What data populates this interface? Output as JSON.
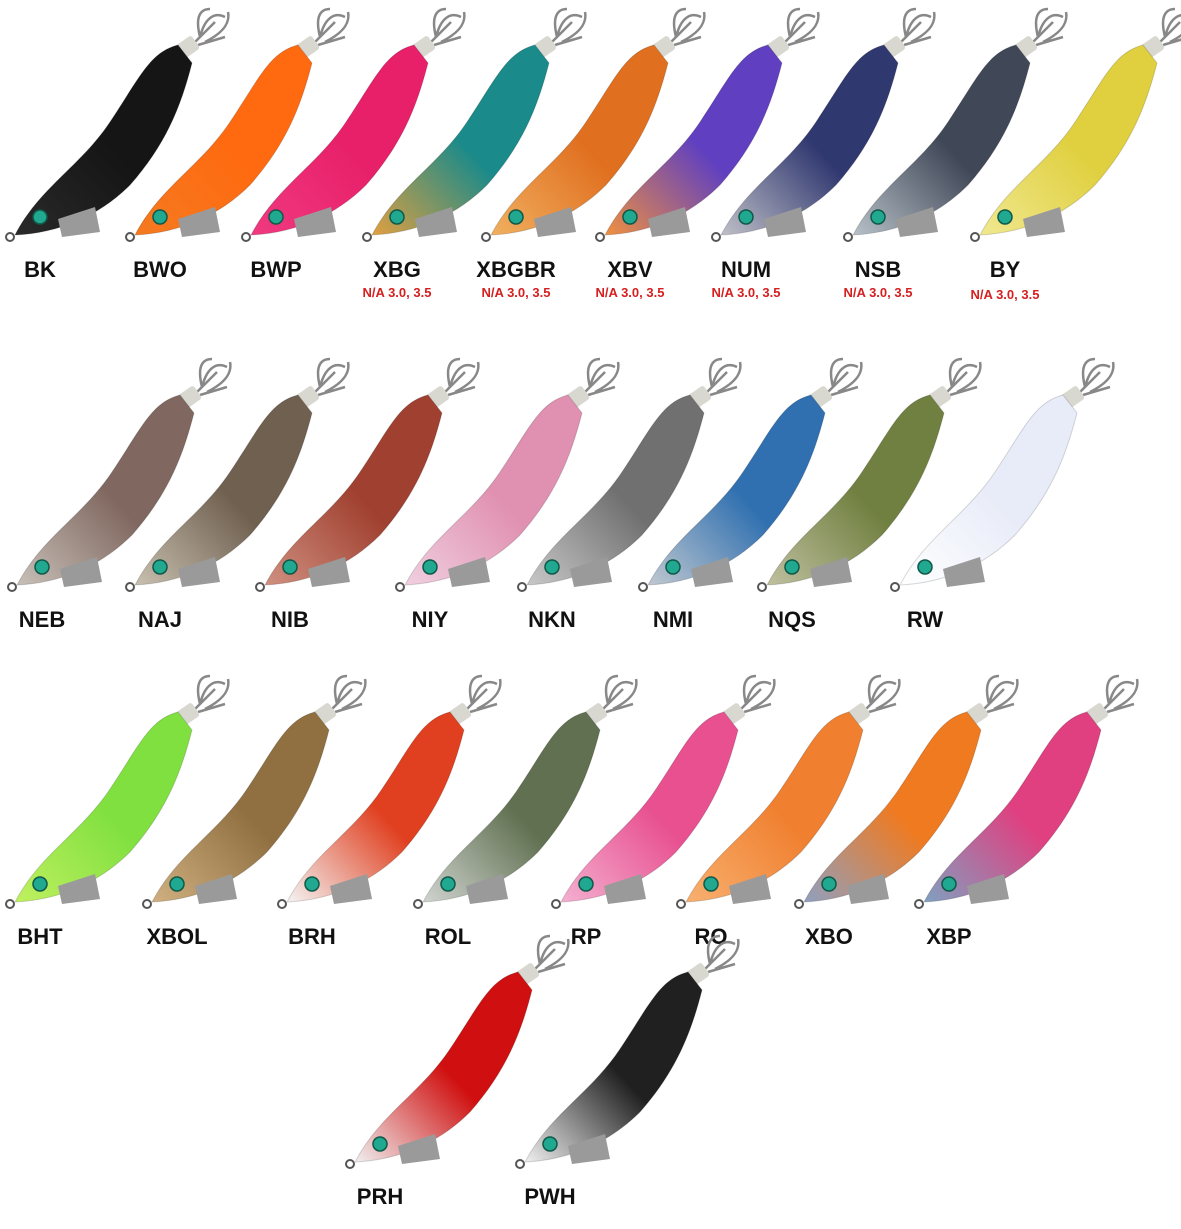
{
  "rows": [
    {
      "items": [
        {
          "code": "BK",
          "colors": [
            "#151515",
            "#2a2a2a"
          ]
        },
        {
          "code": "BWO",
          "colors": [
            "#ff6a10",
            "#f57a20"
          ]
        },
        {
          "code": "BWP",
          "colors": [
            "#e8206a",
            "#f03a80"
          ]
        },
        {
          "code": "XBG",
          "colors": [
            "#1a8a8a",
            "#e0a040"
          ],
          "note": "N/A 3.0, 3.5"
        },
        {
          "code": "XBGBR",
          "colors": [
            "#e07020",
            "#f0b060"
          ],
          "note": "N/A 3.0, 3.5"
        },
        {
          "code": "XBV",
          "colors": [
            "#6040c0",
            "#f09040"
          ],
          "note": "N/A 3.0, 3.5"
        },
        {
          "code": "NUM",
          "colors": [
            "#303870",
            "#c0c0c8"
          ],
          "note": "N/A 3.0, 3.5"
        },
        {
          "code": "NSB",
          "colors": [
            "#404858",
            "#b8c0c8"
          ],
          "note": "N/A 3.0, 3.5"
        },
        {
          "code": "BY",
          "colors": [
            "#e0d040",
            "#f0e890"
          ],
          "note": "N/A 3.0, 3.5"
        }
      ]
    },
    {
      "items": [
        {
          "code": "NEB",
          "colors": [
            "#806860",
            "#c8c0b8"
          ]
        },
        {
          "code": "NAJ",
          "colors": [
            "#706050",
            "#c8c0b0"
          ]
        },
        {
          "code": "NIB",
          "colors": [
            "#a04030",
            "#d09080"
          ]
        },
        {
          "code": "NIY",
          "colors": [
            "#e090b0",
            "#f0d0e0"
          ]
        },
        {
          "code": "NKN",
          "colors": [
            "#707070",
            "#c8c8c8"
          ]
        },
        {
          "code": "NMI",
          "colors": [
            "#3070b0",
            "#c0c8d0"
          ]
        },
        {
          "code": "NQS",
          "colors": [
            "#708040",
            "#c0c0a0"
          ]
        },
        {
          "code": "RW",
          "colors": [
            "#e8ecf8",
            "#ffffff"
          ]
        }
      ]
    },
    {
      "items": [
        {
          "code": "BHT",
          "colors": [
            "#80e040",
            "#c0f060"
          ]
        },
        {
          "code": "XBOL",
          "colors": [
            "#907040",
            "#d0b080"
          ]
        },
        {
          "code": "BRH",
          "colors": [
            "#e04020",
            "#f4f4f4"
          ]
        },
        {
          "code": "ROL",
          "colors": [
            "#607050",
            "#d0d4d0"
          ]
        },
        {
          "code": "RP",
          "colors": [
            "#e85090",
            "#f4b0d0"
          ]
        },
        {
          "code": "RO",
          "colors": [
            "#f08030",
            "#f8b070"
          ]
        },
        {
          "code": "XBO",
          "colors": [
            "#f07a20",
            "#90a0c0"
          ]
        },
        {
          "code": "XBP",
          "colors": [
            "#e04080",
            "#80a0c0"
          ]
        }
      ]
    },
    {
      "items": [
        {
          "code": "PRH",
          "colors": [
            "#d01010",
            "#f0f0f0"
          ]
        },
        {
          "code": "PWH",
          "colors": [
            "#202020",
            "#f0f0f0"
          ]
        }
      ]
    }
  ]
}
